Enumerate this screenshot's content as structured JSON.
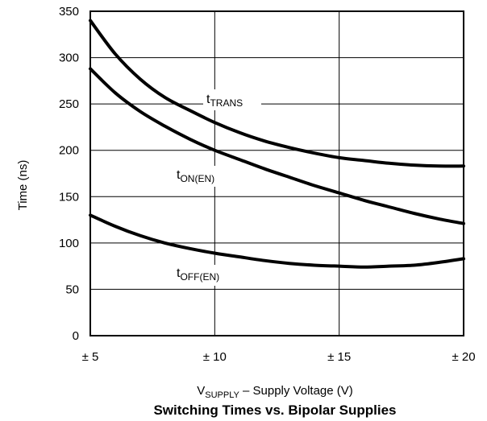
{
  "chart_data": {
    "type": "line",
    "title": "Switching Times vs. Bipolar Supplies",
    "xlabel": {
      "main": "V",
      "sub": "SUPPLY",
      "rest": " – Supply Voltage (V)"
    },
    "ylabel": "Time (ns)",
    "xlim": [
      5,
      20
    ],
    "ylim": [
      0,
      350
    ],
    "xticks": [
      5,
      10,
      15,
      20
    ],
    "xtick_labels": [
      "± 5",
      "± 10",
      "± 15",
      "± 20"
    ],
    "yticks": [
      0,
      50,
      100,
      150,
      200,
      250,
      300,
      350
    ],
    "grid": true,
    "series": [
      {
        "name": {
          "main": "t",
          "sub": "TRANS"
        },
        "x": [
          5,
          6,
          7,
          8,
          9,
          10,
          11,
          12,
          13,
          14,
          15,
          16,
          17,
          18,
          19,
          20
        ],
        "y": [
          340,
          304,
          277,
          257,
          243,
          230,
          219,
          210,
          203,
          197,
          192,
          189,
          186,
          184,
          183,
          183
        ]
      },
      {
        "name": {
          "main": "t",
          "sub": "ON(EN)"
        },
        "x": [
          5,
          6,
          7,
          8,
          9,
          10,
          11,
          12,
          13,
          14,
          15,
          16,
          17,
          18,
          19,
          20
        ],
        "y": [
          288,
          262,
          242,
          226,
          212,
          200,
          190,
          180,
          171,
          162,
          154,
          146,
          139,
          132,
          126,
          121
        ]
      },
      {
        "name": {
          "main": "t",
          "sub": "OFF(EN)"
        },
        "x": [
          5,
          6,
          7,
          8,
          9,
          10,
          11,
          12,
          13,
          14,
          15,
          16,
          17,
          18,
          19,
          20
        ],
        "y": [
          130,
          118,
          108,
          100,
          94,
          89,
          85,
          81,
          78,
          76,
          75,
          74,
          75,
          76,
          79,
          83
        ]
      }
    ]
  }
}
